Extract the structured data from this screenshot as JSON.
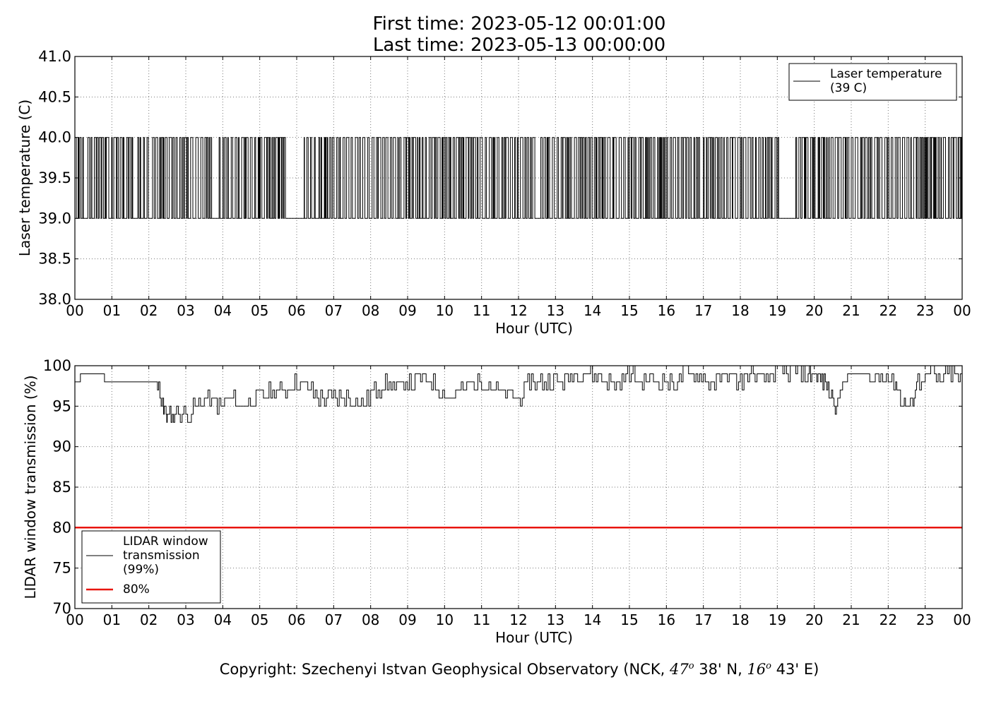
{
  "header": {
    "first_time": "First time: 2023-05-12 00:01:00",
    "last_time": "Last time: 2023-05-13 00:00:00"
  },
  "footer": {
    "copyright_text": "Copyright: Szechenyi Istvan Geophysical Observatory (NCK, ",
    "lat_deg": "47",
    "lat_min": " 38' N, ",
    "lon_deg": "16",
    "lon_min": " 43' E)",
    "degree_symbol": "o"
  },
  "colors": {
    "line": "#000000",
    "threshold": "#e8150f",
    "grid": "#777777"
  },
  "chart_data": [
    {
      "type": "line",
      "ylabel": "Laser temperature (C)",
      "xlabel": "Hour (UTC)",
      "ylim": [
        38.0,
        41.0
      ],
      "xlim": [
        0,
        24
      ],
      "x_ticks": [
        "00",
        "01",
        "02",
        "03",
        "04",
        "05",
        "06",
        "07",
        "08",
        "09",
        "10",
        "11",
        "12",
        "13",
        "14",
        "15",
        "16",
        "17",
        "18",
        "19",
        "20",
        "21",
        "22",
        "23",
        "00"
      ],
      "y_ticks": [
        "38.0",
        "38.5",
        "39.0",
        "39.5",
        "40.0",
        "40.5",
        "41.0"
      ],
      "grid": true,
      "legend_position": "top-right",
      "series": [
        {
          "name": "Laser temperature\n(39 C)",
          "levels": [
            39.0,
            40.0
          ],
          "dense_toggle_windows_hours": [
            [
              0.0,
              0.3
            ],
            [
              0.35,
              1.6
            ],
            [
              1.7,
              2.0
            ],
            [
              2.1,
              3.7
            ],
            [
              3.9,
              5.7
            ],
            [
              6.2,
              6.5
            ],
            [
              6.6,
              12.5
            ],
            [
              12.6,
              16.9
            ],
            [
              17.0,
              19.1
            ],
            [
              19.5,
              24.0
            ]
          ],
          "x": [
            0,
            24
          ],
          "y": [
            39,
            39
          ]
        }
      ]
    },
    {
      "type": "line",
      "ylabel": "LIDAR window transmission (%)",
      "xlabel": "Hour (UTC)",
      "ylim": [
        70,
        100
      ],
      "xlim": [
        0,
        24
      ],
      "x_ticks": [
        "00",
        "01",
        "02",
        "03",
        "04",
        "05",
        "06",
        "07",
        "08",
        "09",
        "10",
        "11",
        "12",
        "13",
        "14",
        "15",
        "16",
        "17",
        "18",
        "19",
        "20",
        "21",
        "22",
        "23",
        "00"
      ],
      "y_ticks": [
        "70",
        "75",
        "80",
        "85",
        "90",
        "95",
        "100"
      ],
      "grid": true,
      "legend_position": "bottom-left",
      "series": [
        {
          "name": "LIDAR window\ntransmission\n(99%)",
          "x": [
            0.0,
            0.3,
            0.6,
            0.9,
            1.2,
            1.5,
            1.8,
            2.0,
            2.2,
            2.4,
            2.5,
            2.7,
            3.0,
            3.3,
            3.6,
            3.9,
            4.2,
            4.5,
            4.8,
            5.1,
            5.4,
            5.7,
            6.0,
            6.3,
            6.6,
            6.9,
            7.2,
            7.5,
            7.8,
            8.1,
            8.4,
            8.7,
            9.0,
            9.3,
            9.6,
            9.9,
            10.2,
            10.5,
            10.8,
            11.1,
            11.4,
            11.7,
            12.0,
            12.3,
            12.6,
            12.9,
            13.2,
            13.5,
            13.8,
            14.1,
            14.4,
            14.7,
            15.0,
            15.3,
            15.6,
            15.9,
            16.2,
            16.5,
            16.8,
            17.1,
            17.4,
            17.7,
            18.0,
            18.3,
            18.6,
            18.9,
            19.2,
            19.5,
            19.8,
            20.0,
            20.2,
            20.4,
            20.6,
            20.8,
            21.0,
            21.3,
            21.6,
            21.9,
            22.2,
            22.4,
            22.6,
            22.8,
            23.1,
            23.4,
            23.7,
            24.0
          ],
          "y": [
            98,
            99,
            99,
            98,
            98,
            98,
            98,
            98,
            98,
            95,
            94,
            94,
            94,
            95,
            96,
            95,
            96,
            95,
            96,
            96,
            97,
            97,
            98,
            97,
            96,
            96,
            96,
            96,
            95,
            97,
            98,
            97,
            98,
            98,
            98,
            97,
            96,
            97,
            98,
            98,
            97,
            96,
            96,
            98,
            98,
            98,
            98,
            99,
            99,
            99,
            98,
            98,
            99,
            98,
            98,
            98,
            98,
            99,
            99,
            98,
            98,
            99,
            98,
            99,
            98,
            99,
            99,
            99,
            99,
            99,
            98,
            97,
            95,
            98,
            99,
            99,
            98,
            99,
            98,
            95,
            95,
            98,
            99,
            98,
            99,
            98
          ]
        },
        {
          "name": "80%",
          "x": [
            0,
            24
          ],
          "y": [
            80,
            80
          ]
        }
      ]
    }
  ]
}
